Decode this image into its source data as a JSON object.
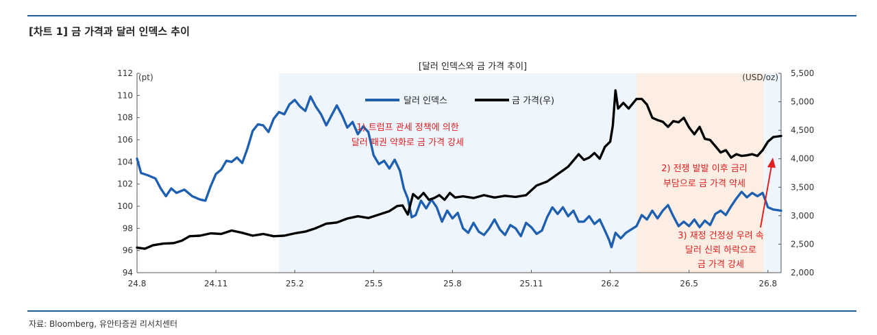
{
  "page": {
    "title": "[차트 1] 금 가격과 달러 인덱스 추이",
    "source": "자료: Bloomberg, 유안타증권 리서치센터"
  },
  "colors": {
    "rule": "#1f5a96",
    "dxy": "#1f5fb0",
    "gold": "#000000",
    "band_blue": "#eef5fc",
    "band_orange": "#fdeee4",
    "annotation": "#e02020"
  },
  "chart_data": {
    "type": "line",
    "title": "[달러 인덱스와 금 가격 추이]",
    "y_left_unit": "(pt)",
    "y_right_unit": "(USD/oz)",
    "ylim_left": [
      94,
      112
    ],
    "ylim_right": [
      2000,
      5500
    ],
    "yticks_left": [
      "94",
      "96",
      "98",
      "100",
      "102",
      "104",
      "106",
      "108",
      "110",
      "112"
    ],
    "yticks_right": [
      "2,000",
      "2,500",
      "3,000",
      "3,500",
      "4,000",
      "4,500",
      "5,000",
      "5,500"
    ],
    "x_ticks": [
      "24.8",
      "24.11",
      "25.2",
      "25.5",
      "25.8",
      "25.11",
      "26.2",
      "26.5",
      "26.8"
    ],
    "x_range_months": [
      0,
      24.5
    ],
    "legend": [
      "달러 인덱스",
      "금 가격(우)"
    ],
    "grid": false,
    "shaded_periods": [
      {
        "start": 5.4,
        "end": 19.0,
        "color": "band_blue"
      },
      {
        "start": 19.0,
        "end": 23.85,
        "color": "band_orange"
      },
      {
        "start": 23.85,
        "end": 24.5,
        "color": "band_blue"
      }
    ],
    "annotations": [
      {
        "lines": [
          "1) 트럼프 관세 정책에 의한",
          "달러 패권 약화로 금 가격 강세"
        ]
      },
      {
        "lines": [
          "2) 전쟁 발발 이후 금리",
          "부담으로 금 가격 약세"
        ]
      },
      {
        "lines": [
          "3) 재정 건정성 우려 속",
          "달러 신뢰 하락으로",
          "금 가격 강세"
        ]
      }
    ],
    "series": [
      {
        "name": "달러 인덱스",
        "axis": "left",
        "points": [
          [
            0,
            104.3
          ],
          [
            0.15,
            103.0
          ],
          [
            0.4,
            102.8
          ],
          [
            0.7,
            102.5
          ],
          [
            0.9,
            101.6
          ],
          [
            1.1,
            100.9
          ],
          [
            1.3,
            101.6
          ],
          [
            1.5,
            101.2
          ],
          [
            1.8,
            101.5
          ],
          [
            2.1,
            100.9
          ],
          [
            2.4,
            100.6
          ],
          [
            2.6,
            100.5
          ],
          [
            2.8,
            101.8
          ],
          [
            3.0,
            102.9
          ],
          [
            3.2,
            103.3
          ],
          [
            3.4,
            104.1
          ],
          [
            3.6,
            104.0
          ],
          [
            3.8,
            104.4
          ],
          [
            4.0,
            103.9
          ],
          [
            4.2,
            105.2
          ],
          [
            4.4,
            106.8
          ],
          [
            4.6,
            107.4
          ],
          [
            4.8,
            107.3
          ],
          [
            5.0,
            106.7
          ],
          [
            5.2,
            107.9
          ],
          [
            5.4,
            108.5
          ],
          [
            5.6,
            108.3
          ],
          [
            5.8,
            109.2
          ],
          [
            6.0,
            109.6
          ],
          [
            6.2,
            109.0
          ],
          [
            6.4,
            108.6
          ],
          [
            6.6,
            109.9
          ],
          [
            6.8,
            109.0
          ],
          [
            7.0,
            108.3
          ],
          [
            7.2,
            107.3
          ],
          [
            7.4,
            108.2
          ],
          [
            7.6,
            109.1
          ],
          [
            7.8,
            108.2
          ],
          [
            8.0,
            107.1
          ],
          [
            8.2,
            107.6
          ],
          [
            8.4,
            106.5
          ],
          [
            8.6,
            107.2
          ],
          [
            8.8,
            106.7
          ],
          [
            9.0,
            104.6
          ],
          [
            9.2,
            103.8
          ],
          [
            9.4,
            104.1
          ],
          [
            9.6,
            103.4
          ],
          [
            9.8,
            104.2
          ],
          [
            10.0,
            103.2
          ],
          [
            10.15,
            101.6
          ],
          [
            10.3,
            100.7
          ],
          [
            10.45,
            99.0
          ],
          [
            10.6,
            99.2
          ],
          [
            10.8,
            100.5
          ],
          [
            11.0,
            99.8
          ],
          [
            11.2,
            100.6
          ],
          [
            11.4,
            99.9
          ],
          [
            11.6,
            98.6
          ],
          [
            11.8,
            99.6
          ],
          [
            12.0,
            98.9
          ],
          [
            12.2,
            99.4
          ],
          [
            12.4,
            98.0
          ],
          [
            12.6,
            97.6
          ],
          [
            12.8,
            98.5
          ],
          [
            13.0,
            97.7
          ],
          [
            13.2,
            97.4
          ],
          [
            13.4,
            98.0
          ],
          [
            13.6,
            98.8
          ],
          [
            13.8,
            97.9
          ],
          [
            14.0,
            97.4
          ],
          [
            14.2,
            98.3
          ],
          [
            14.4,
            98.0
          ],
          [
            14.6,
            97.3
          ],
          [
            14.8,
            98.5
          ],
          [
            15.0,
            98.1
          ],
          [
            15.2,
            97.5
          ],
          [
            15.4,
            97.8
          ],
          [
            15.6,
            99.0
          ],
          [
            15.8,
            99.9
          ],
          [
            16.0,
            99.3
          ],
          [
            16.2,
            99.9
          ],
          [
            16.4,
            99.1
          ],
          [
            16.6,
            99.6
          ],
          [
            16.8,
            98.6
          ],
          [
            17.0,
            98.6
          ],
          [
            17.2,
            99.1
          ],
          [
            17.4,
            98.4
          ],
          [
            17.6,
            98.8
          ],
          [
            17.8,
            97.8
          ],
          [
            17.95,
            97.0
          ],
          [
            18.05,
            96.3
          ],
          [
            18.2,
            97.6
          ],
          [
            18.4,
            97.1
          ],
          [
            18.6,
            97.6
          ],
          [
            18.8,
            97.9
          ],
          [
            19.0,
            98.2
          ],
          [
            19.2,
            99.2
          ],
          [
            19.4,
            98.8
          ],
          [
            19.6,
            99.6
          ],
          [
            19.8,
            98.9
          ],
          [
            20.0,
            99.6
          ],
          [
            20.2,
            100.1
          ],
          [
            20.4,
            99.1
          ],
          [
            20.6,
            98.2
          ],
          [
            20.8,
            98.6
          ],
          [
            21.0,
            98.2
          ],
          [
            21.2,
            98.8
          ],
          [
            21.4,
            98.1
          ],
          [
            21.6,
            98.7
          ],
          [
            21.8,
            98.3
          ],
          [
            22.0,
            99.3
          ],
          [
            22.2,
            99.6
          ],
          [
            22.4,
            99.2
          ],
          [
            22.6,
            100.0
          ],
          [
            22.8,
            100.7
          ],
          [
            23.0,
            101.3
          ],
          [
            23.2,
            100.8
          ],
          [
            23.4,
            101.2
          ],
          [
            23.6,
            100.9
          ],
          [
            23.8,
            101.2
          ],
          [
            24.0,
            99.9
          ],
          [
            24.2,
            99.7
          ],
          [
            24.5,
            99.6
          ]
        ]
      },
      {
        "name": "금 가격(우)",
        "axis": "right",
        "points": [
          [
            0,
            2440
          ],
          [
            0.3,
            2420
          ],
          [
            0.6,
            2480
          ],
          [
            1.0,
            2510
          ],
          [
            1.4,
            2520
          ],
          [
            1.7,
            2560
          ],
          [
            2.0,
            2640
          ],
          [
            2.4,
            2650
          ],
          [
            2.8,
            2690
          ],
          [
            3.2,
            2680
          ],
          [
            3.6,
            2740
          ],
          [
            4.0,
            2700
          ],
          [
            4.4,
            2650
          ],
          [
            4.8,
            2680
          ],
          [
            5.2,
            2640
          ],
          [
            5.6,
            2650
          ],
          [
            6.0,
            2690
          ],
          [
            6.4,
            2720
          ],
          [
            6.8,
            2780
          ],
          [
            7.2,
            2860
          ],
          [
            7.6,
            2880
          ],
          [
            8.0,
            2950
          ],
          [
            8.4,
            2990
          ],
          [
            8.8,
            2960
          ],
          [
            9.2,
            3020
          ],
          [
            9.6,
            3080
          ],
          [
            9.9,
            3170
          ],
          [
            10.1,
            3180
          ],
          [
            10.3,
            3020
          ],
          [
            10.5,
            3380
          ],
          [
            10.7,
            3300
          ],
          [
            10.9,
            3400
          ],
          [
            11.1,
            3280
          ],
          [
            11.3,
            3310
          ],
          [
            11.5,
            3360
          ],
          [
            11.7,
            3280
          ],
          [
            11.9,
            3400
          ],
          [
            12.1,
            3320
          ],
          [
            12.4,
            3340
          ],
          [
            12.8,
            3310
          ],
          [
            13.2,
            3360
          ],
          [
            13.6,
            3320
          ],
          [
            14.0,
            3350
          ],
          [
            14.4,
            3330
          ],
          [
            14.8,
            3360
          ],
          [
            15.2,
            3530
          ],
          [
            15.6,
            3600
          ],
          [
            16.0,
            3730
          ],
          [
            16.4,
            3860
          ],
          [
            16.8,
            4080
          ],
          [
            17.0,
            3980
          ],
          [
            17.2,
            4020
          ],
          [
            17.4,
            4100
          ],
          [
            17.6,
            4000
          ],
          [
            17.8,
            4210
          ],
          [
            18.0,
            4300
          ],
          [
            18.1,
            4580
          ],
          [
            18.2,
            5200
          ],
          [
            18.3,
            4880
          ],
          [
            18.5,
            4980
          ],
          [
            18.7,
            4880
          ],
          [
            19.0,
            5050
          ],
          [
            19.2,
            5050
          ],
          [
            19.4,
            4950
          ],
          [
            19.6,
            4720
          ],
          [
            19.8,
            4680
          ],
          [
            20.0,
            4650
          ],
          [
            20.2,
            4560
          ],
          [
            20.4,
            4660
          ],
          [
            20.6,
            4640
          ],
          [
            20.8,
            4720
          ],
          [
            21.0,
            4550
          ],
          [
            21.2,
            4430
          ],
          [
            21.4,
            4560
          ],
          [
            21.6,
            4350
          ],
          [
            21.8,
            4330
          ],
          [
            22.0,
            4220
          ],
          [
            22.2,
            4110
          ],
          [
            22.4,
            4150
          ],
          [
            22.6,
            4020
          ],
          [
            22.8,
            4080
          ],
          [
            23.0,
            4050
          ],
          [
            23.2,
            4060
          ],
          [
            23.4,
            4080
          ],
          [
            23.6,
            4050
          ],
          [
            23.8,
            4150
          ],
          [
            24.0,
            4300
          ],
          [
            24.2,
            4380
          ],
          [
            24.5,
            4400
          ]
        ]
      }
    ]
  }
}
